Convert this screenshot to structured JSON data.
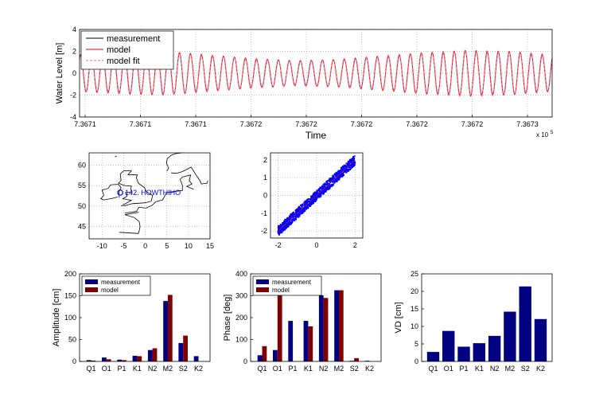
{
  "chart_data": [
    {
      "type": "line",
      "xlabel": "Time",
      "ylabel": "Water Level [m]",
      "x_tick_labels": [
        "7.3671",
        "7.3671",
        "7.3671",
        "7.3672",
        "7.3672",
        "7.3672",
        "7.3672",
        "7.3672",
        "7.3673"
      ],
      "x_multiplier": "x 10",
      "x_multiplier_exp": "5",
      "ylim": [
        -4,
        4
      ],
      "y_ticks": [
        -4,
        -2,
        0,
        2,
        4
      ],
      "grid": true,
      "legend_position": "top-left",
      "series": [
        {
          "name": "measurement",
          "color": "#000000",
          "style": "solid"
        },
        {
          "name": "model",
          "color": "#ff0000",
          "style": "solid"
        },
        {
          "name": "model fit",
          "color": "#ff6666",
          "style": "dashed"
        }
      ],
      "cycles": 43,
      "amplitude_envelope": [
        1.6,
        1.8,
        1.9,
        1.6,
        1.3,
        1.1,
        1.2,
        1.5,
        1.8,
        2.0,
        1.9,
        1.6
      ]
    },
    {
      "type": "map",
      "xlim": [
        -13,
        15
      ],
      "ylim": [
        42,
        63
      ],
      "x_ticks": [
        -10,
        -5,
        0,
        5,
        10,
        15
      ],
      "y_ticks": [
        45,
        50,
        55,
        60
      ],
      "grid": true,
      "station": {
        "label": "142. HOWTHIHO",
        "lon": -5.8,
        "lat": 53.3,
        "color": "#0000ff"
      }
    },
    {
      "type": "scatter",
      "xlim": [
        -2.4,
        2.4
      ],
      "ylim": [
        -2.4,
        2.4
      ],
      "x_ticks": [
        -2,
        0,
        2
      ],
      "y_ticks": [
        -2,
        -1,
        0,
        1,
        2
      ],
      "grid": true,
      "color": "#0000ff",
      "trend": {
        "from": [
          -2,
          -2
        ],
        "to": [
          2,
          2
        ]
      }
    },
    {
      "type": "bar",
      "ylabel": "Amplitude [cm]",
      "categories": [
        "Q1",
        "O1",
        "P1",
        "K1",
        "N2",
        "M2",
        "S2",
        "K2"
      ],
      "ylim": [
        0,
        200
      ],
      "y_ticks": [
        0,
        50,
        100,
        150,
        200
      ],
      "legend_position": "top-left",
      "series": [
        {
          "name": "measurement",
          "color": "#000080",
          "values": [
            3,
            9,
            4,
            13,
            26,
            138,
            42,
            12
          ]
        },
        {
          "name": "model",
          "color": "#800000",
          "values": [
            2,
            5,
            3,
            12,
            30,
            152,
            59,
            0
          ]
        }
      ]
    },
    {
      "type": "bar",
      "ylabel": "Phase [deg]",
      "categories": [
        "Q1",
        "O1",
        "P1",
        "K1",
        "N2",
        "M2",
        "S2",
        "K2"
      ],
      "ylim": [
        0,
        400
      ],
      "y_ticks": [
        0,
        100,
        200,
        300,
        400
      ],
      "legend_position": "top-left",
      "series": [
        {
          "name": "measurement",
          "color": "#000080",
          "values": [
            28,
            52,
            185,
            185,
            302,
            325,
            3,
            3
          ]
        },
        {
          "name": "model",
          "color": "#800000",
          "values": [
            70,
            305,
            0,
            160,
            290,
            325,
            15,
            0
          ]
        }
      ]
    },
    {
      "type": "bar",
      "ylabel": "VD [cm]",
      "categories": [
        "Q1",
        "O1",
        "P1",
        "K1",
        "N2",
        "M2",
        "S2",
        "K2"
      ],
      "ylim": [
        0,
        25
      ],
      "y_ticks": [
        0,
        5,
        10,
        15,
        20,
        25
      ],
      "series": [
        {
          "name": "",
          "color": "#000080",
          "values": [
            2.7,
            8.7,
            4.2,
            5.2,
            7.3,
            14.2,
            21.4,
            12.1
          ]
        }
      ]
    }
  ]
}
